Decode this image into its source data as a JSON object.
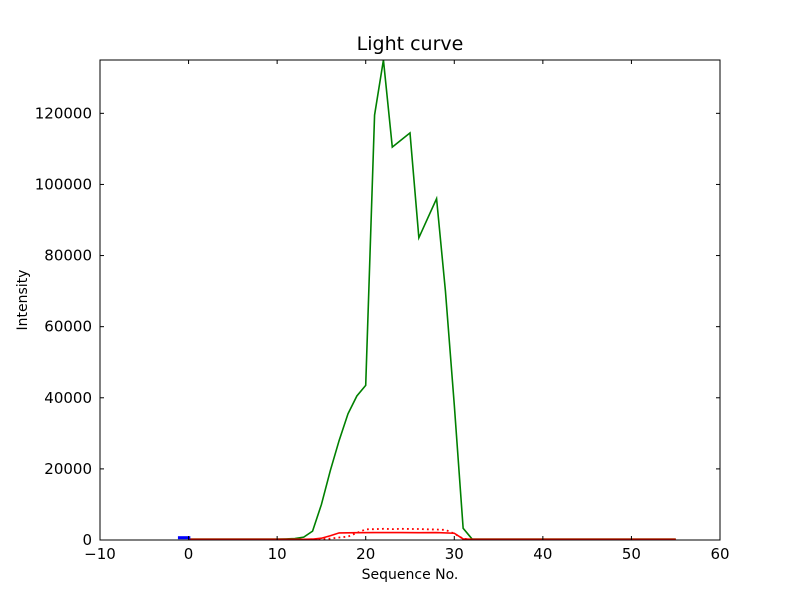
{
  "figure": {
    "title": "Light curve",
    "xlabel": "Sequence No.",
    "ylabel": "Intensity"
  },
  "chart_data": {
    "type": "line",
    "title": "Light curve",
    "xlabel": "Sequence No.",
    "ylabel": "Intensity",
    "xlim": [
      -10,
      60
    ],
    "ylim": [
      0,
      135000
    ],
    "xticks": [
      -10,
      0,
      10,
      20,
      30,
      40,
      50,
      60
    ],
    "xtick_labels": [
      "−10",
      "0",
      "10",
      "20",
      "30",
      "40",
      "50",
      "60"
    ],
    "yticks": [
      0,
      20000,
      40000,
      60000,
      80000,
      100000,
      120000
    ],
    "ytick_labels": [
      "0",
      "20000",
      "40000",
      "60000",
      "80000",
      "100000",
      "120000"
    ],
    "grid": false,
    "legend": null,
    "background": "#ffffff",
    "spine_color": "#000000",
    "tick_style": {
      "direction": "in",
      "length": 4,
      "sides": [
        "bottom",
        "top",
        "left",
        "right"
      ]
    },
    "series": [
      {
        "name": "green-curve",
        "color": "#008000",
        "style": "solid",
        "width": 1.6,
        "points": [
          [
            0,
            250
          ],
          [
            10,
            250
          ],
          [
            11,
            300
          ],
          [
            12,
            400
          ],
          [
            13,
            800
          ],
          [
            14,
            2500
          ],
          [
            15,
            10000
          ],
          [
            16,
            19500
          ],
          [
            17,
            28000
          ],
          [
            18,
            35500
          ],
          [
            19,
            40500
          ],
          [
            20,
            43500
          ],
          [
            21,
            119500
          ],
          [
            22,
            135000
          ],
          [
            23,
            110500
          ],
          [
            24,
            112500
          ],
          [
            25,
            114500
          ],
          [
            26,
            85000
          ],
          [
            27,
            90500
          ],
          [
            28,
            96000
          ],
          [
            29,
            70000
          ],
          [
            30,
            38000
          ],
          [
            31,
            3300
          ],
          [
            32,
            300
          ],
          [
            33,
            250
          ],
          [
            55,
            250
          ]
        ]
      },
      {
        "name": "red-curve",
        "color": "#ff0000",
        "style": "solid",
        "width": 1.6,
        "points": [
          [
            0,
            200
          ],
          [
            13,
            200
          ],
          [
            14,
            250
          ],
          [
            15,
            500
          ],
          [
            16,
            1200
          ],
          [
            17,
            2000
          ],
          [
            19,
            2050
          ],
          [
            21,
            2100
          ],
          [
            24,
            2100
          ],
          [
            26,
            2050
          ],
          [
            28,
            2100
          ],
          [
            30,
            1900
          ],
          [
            31,
            300
          ],
          [
            32,
            200
          ],
          [
            55,
            200
          ]
        ]
      },
      {
        "name": "red-dotted-curve",
        "color": "#ff0000",
        "style": "dotted",
        "width": 1.8,
        "points": [
          [
            0,
            150
          ],
          [
            14,
            150
          ],
          [
            15,
            250
          ],
          [
            16,
            400
          ],
          [
            17,
            700
          ],
          [
            18,
            950
          ],
          [
            19,
            2000
          ],
          [
            20,
            3000
          ],
          [
            21,
            3050
          ],
          [
            22,
            3150
          ],
          [
            23,
            3050
          ],
          [
            24,
            3150
          ],
          [
            25,
            3100
          ],
          [
            26,
            3100
          ],
          [
            27,
            3000
          ],
          [
            28,
            2950
          ],
          [
            29,
            2850
          ],
          [
            30,
            1800
          ],
          [
            31,
            350
          ],
          [
            32,
            150
          ],
          [
            55,
            150
          ]
        ]
      },
      {
        "name": "blue-segment",
        "color": "#0000ff",
        "style": "solid",
        "width": 3,
        "points": [
          [
            -1.2,
            650
          ],
          [
            0.2,
            650
          ]
        ]
      }
    ]
  }
}
